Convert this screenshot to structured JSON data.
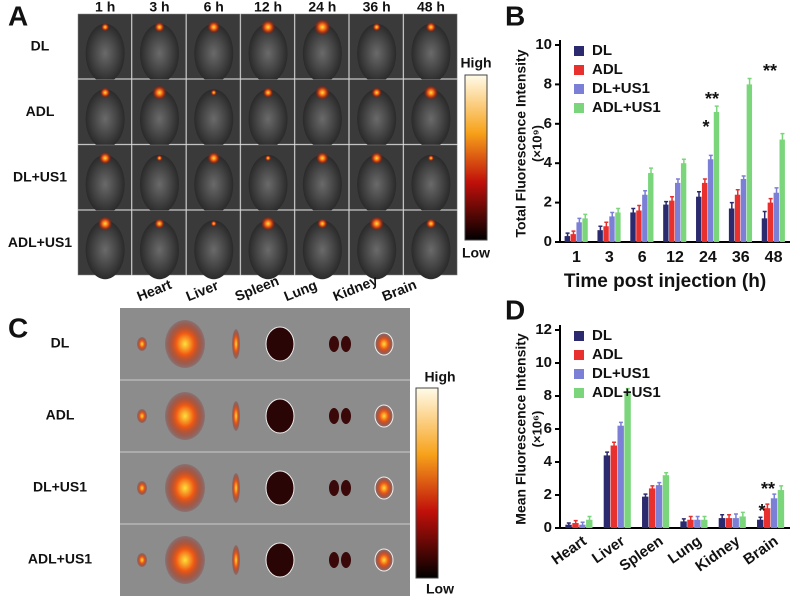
{
  "panel_a": {
    "label": "A",
    "columns": [
      "1 h",
      "3 h",
      "6 h",
      "12 h",
      "24 h",
      "36 h",
      "48 h"
    ],
    "rows": [
      "DL",
      "ADL",
      "DL+US1",
      "ADL+US1"
    ],
    "scale_high": "High",
    "scale_low": "Low"
  },
  "panel_c": {
    "label": "C",
    "columns": [
      "Heart",
      "Liver",
      "Spleen",
      "Lung",
      "Kidney",
      "Brain"
    ],
    "rows": [
      "DL",
      "ADL",
      "DL+US1",
      "ADL+US1"
    ],
    "scale_high": "High",
    "scale_low": "Low"
  },
  "chart_data": [
    {
      "type": "bar",
      "panel_label": "B",
      "y_label": "Total Fluorescence Intensity",
      "y_unit": "(×10⁹)",
      "x_label": "Time post injection (h)",
      "categories": [
        "1",
        "3",
        "6",
        "12",
        "24",
        "36",
        "48"
      ],
      "series": [
        {
          "name": "DL",
          "color": "#2b2a6e",
          "values": [
            0.3,
            0.6,
            1.5,
            1.9,
            2.3,
            1.7,
            1.2
          ],
          "errors": [
            0.15,
            0.2,
            0.2,
            0.15,
            0.25,
            0.3,
            0.35
          ]
        },
        {
          "name": "ADL",
          "color": "#e8302f",
          "values": [
            0.4,
            0.8,
            1.6,
            2.1,
            3.0,
            2.4,
            2.0
          ],
          "errors": [
            0.15,
            0.2,
            0.25,
            0.2,
            0.2,
            0.25,
            0.2
          ]
        },
        {
          "name": "DL+US1",
          "color": "#7b7fd6",
          "values": [
            1.0,
            1.3,
            2.4,
            3.0,
            4.2,
            3.2,
            2.5
          ],
          "errors": [
            0.2,
            0.2,
            0.2,
            0.2,
            0.2,
            0.15,
            0.25
          ]
        },
        {
          "name": "ADL+US1",
          "color": "#7bd67b",
          "values": [
            1.2,
            1.5,
            3.5,
            4.0,
            6.6,
            8.0,
            5.2
          ],
          "errors": [
            0.2,
            0.2,
            0.25,
            0.2,
            0.3,
            0.3,
            0.3
          ]
        }
      ],
      "ylim": [
        0,
        10
      ],
      "yticks": [
        0,
        2,
        4,
        6,
        8,
        10
      ],
      "legend": "upper left",
      "annotations": [
        "**",
        "*",
        "**"
      ]
    },
    {
      "type": "bar",
      "panel_label": "D",
      "y_label": "Mean Fluorescence Intensity",
      "y_unit": "(×10⁶)",
      "categories": [
        "Heart",
        "Liver",
        "Spleen",
        "Lung",
        "Kidney",
        "Brain"
      ],
      "series": [
        {
          "name": "DL",
          "color": "#2b2a6e",
          "values": [
            0.2,
            4.4,
            1.9,
            0.4,
            0.6,
            0.5
          ],
          "errors": [
            0.1,
            0.2,
            0.15,
            0.15,
            0.2,
            0.15
          ]
        },
        {
          "name": "ADL",
          "color": "#e8302f",
          "values": [
            0.3,
            5.0,
            2.4,
            0.5,
            0.6,
            1.2
          ],
          "errors": [
            0.15,
            0.2,
            0.15,
            0.2,
            0.2,
            0.25
          ]
        },
        {
          "name": "DL+US1",
          "color": "#7b7fd6",
          "values": [
            0.2,
            6.2,
            2.6,
            0.5,
            0.6,
            1.8
          ],
          "errors": [
            0.15,
            0.2,
            0.15,
            0.2,
            0.25,
            0.25
          ]
        },
        {
          "name": "ADL+US1",
          "color": "#7bd67b",
          "values": [
            0.5,
            8.3,
            3.2,
            0.5,
            0.7,
            2.3
          ],
          "errors": [
            0.2,
            0.15,
            0.15,
            0.2,
            0.25,
            0.25
          ]
        }
      ],
      "ylim": [
        0,
        12
      ],
      "yticks": [
        0,
        2,
        4,
        6,
        8,
        10,
        12
      ],
      "legend": "upper left",
      "annotations": [
        "**",
        "*"
      ]
    }
  ]
}
